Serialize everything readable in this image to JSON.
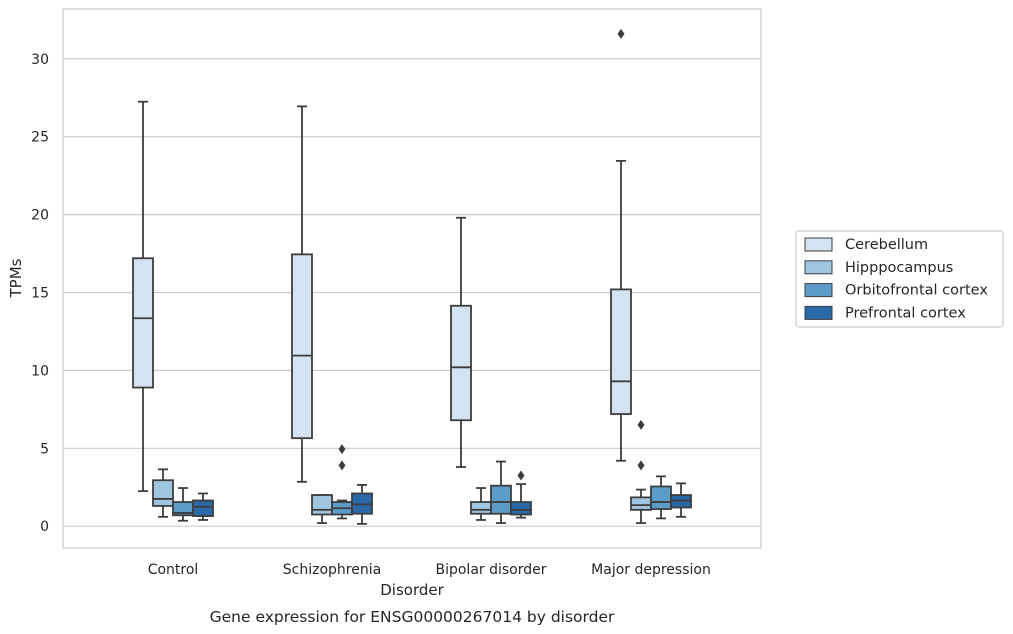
{
  "caption": "Gene expression for ENSG00000267014 by disorder",
  "chart_data": {
    "type": "box",
    "xlabel": "Disorder",
    "ylabel": "TPMs",
    "ylim": [
      -1.4,
      33.2
    ],
    "yticks": [
      0,
      5,
      10,
      15,
      20,
      25,
      30
    ],
    "grid": "horizontal",
    "legend_position": "right",
    "categories": [
      "Control",
      "Schizophrenia",
      "Bipolar disorder",
      "Major depression"
    ],
    "series": [
      {
        "name": "Cerebellum",
        "color": "#d4e3f1",
        "boxes": [
          {
            "whislo": 2.25,
            "q1": 8.9,
            "med": 13.35,
            "q3": 17.2,
            "whishi": 27.25,
            "fliers": []
          },
          {
            "whislo": 2.85,
            "q1": 5.65,
            "med": 10.95,
            "q3": 17.45,
            "whishi": 26.95,
            "fliers": []
          },
          {
            "whislo": 3.8,
            "q1": 6.8,
            "med": 10.2,
            "q3": 14.15,
            "whishi": 19.8,
            "fliers": []
          },
          {
            "whislo": 4.2,
            "q1": 7.2,
            "med": 9.3,
            "q3": 15.2,
            "whishi": 23.45,
            "fliers": [
              31.6
            ]
          }
        ]
      },
      {
        "name": "Hipppocampus",
        "color": "#a0c6df",
        "boxes": [
          {
            "whislo": 0.6,
            "q1": 1.3,
            "med": 1.75,
            "q3": 2.95,
            "whishi": 3.65,
            "fliers": []
          },
          {
            "whislo": 0.2,
            "q1": 0.75,
            "med": 1.05,
            "q3": 2.0,
            "whishi": 2.0,
            "fliers": []
          },
          {
            "whislo": 0.4,
            "q1": 0.8,
            "med": 1.05,
            "q3": 1.55,
            "whishi": 2.45,
            "fliers": []
          },
          {
            "whislo": 0.2,
            "q1": 1.05,
            "med": 1.35,
            "q3": 1.85,
            "whishi": 2.35,
            "fliers": [
              3.9,
              6.5
            ]
          }
        ]
      },
      {
        "name": "Orbitofrontal cortex",
        "color": "#5b9ccb",
        "boxes": [
          {
            "whislo": 0.35,
            "q1": 0.7,
            "med": 0.85,
            "q3": 1.55,
            "whishi": 2.45,
            "fliers": []
          },
          {
            "whislo": 0.5,
            "q1": 0.75,
            "med": 1.15,
            "q3": 1.55,
            "whishi": 1.65,
            "fliers": [
              3.9,
              4.95
            ]
          },
          {
            "whislo": 0.2,
            "q1": 0.8,
            "med": 1.55,
            "q3": 2.6,
            "whishi": 4.15,
            "fliers": []
          },
          {
            "whislo": 0.5,
            "q1": 1.1,
            "med": 1.55,
            "q3": 2.55,
            "whishi": 3.2,
            "fliers": []
          }
        ]
      },
      {
        "name": "Prefrontal cortex",
        "color": "#2b68a8",
        "boxes": [
          {
            "whislo": 0.4,
            "q1": 0.65,
            "med": 1.25,
            "q3": 1.65,
            "whishi": 2.1,
            "fliers": []
          },
          {
            "whislo": 0.15,
            "q1": 0.8,
            "med": 1.4,
            "q3": 2.1,
            "whishi": 2.65,
            "fliers": []
          },
          {
            "whislo": 0.55,
            "q1": 0.75,
            "med": 1.05,
            "q3": 1.55,
            "whishi": 2.7,
            "fliers": [
              3.25
            ]
          },
          {
            "whislo": 0.6,
            "q1": 1.2,
            "med": 1.65,
            "q3": 2.0,
            "whishi": 2.75,
            "fliers": []
          }
        ]
      }
    ]
  }
}
